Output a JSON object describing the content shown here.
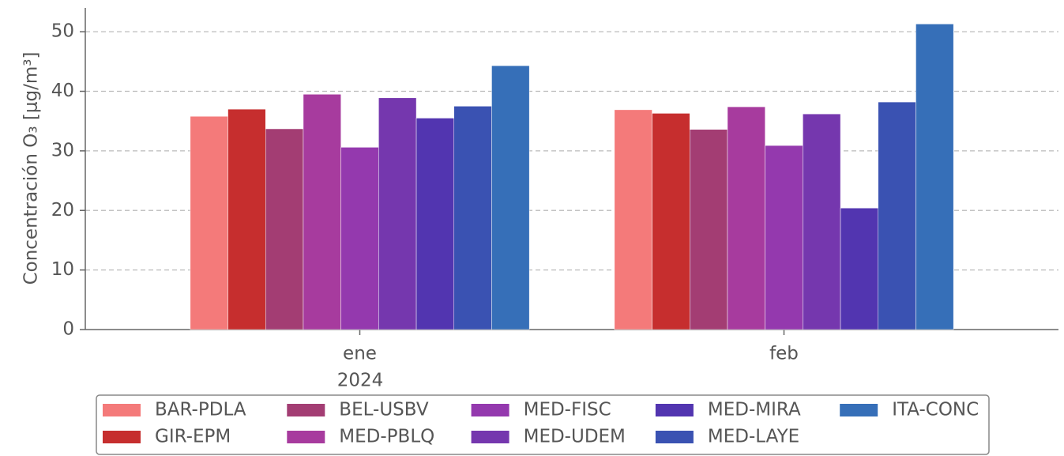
{
  "chart_data": {
    "type": "bar",
    "y_label": "Concentración O₃ [μg/m³]",
    "categories": [
      "ene",
      "feb"
    ],
    "x_year_label": "2024",
    "series": [
      {
        "name": "BAR-PDLA",
        "color": "#f47a7a",
        "values": [
          35.8,
          36.9
        ]
      },
      {
        "name": "GIR-EPM",
        "color": "#c62e2e",
        "values": [
          37.0,
          36.3
        ]
      },
      {
        "name": "BEL-USBV",
        "color": "#a33d73",
        "values": [
          33.7,
          33.6
        ]
      },
      {
        "name": "MED-PBLQ",
        "color": "#a73b9e",
        "values": [
          39.5,
          37.4
        ]
      },
      {
        "name": "MED-FISC",
        "color": "#9439ae",
        "values": [
          30.6,
          30.9
        ]
      },
      {
        "name": "MED-UDEM",
        "color": "#7537ae",
        "values": [
          38.9,
          36.2
        ]
      },
      {
        "name": "MED-MIRA",
        "color": "#5235b0",
        "values": [
          35.5,
          20.4
        ]
      },
      {
        "name": "MED-LAYE",
        "color": "#3a52b2",
        "values": [
          37.5,
          38.2
        ]
      },
      {
        "name": "ITA-CONC",
        "color": "#366fb8",
        "values": [
          44.3,
          51.3
        ]
      }
    ],
    "ylim": [
      0,
      54
    ],
    "yticks": [
      0,
      10,
      20,
      30,
      40,
      50
    ],
    "grid": true,
    "legend": "bottom"
  }
}
